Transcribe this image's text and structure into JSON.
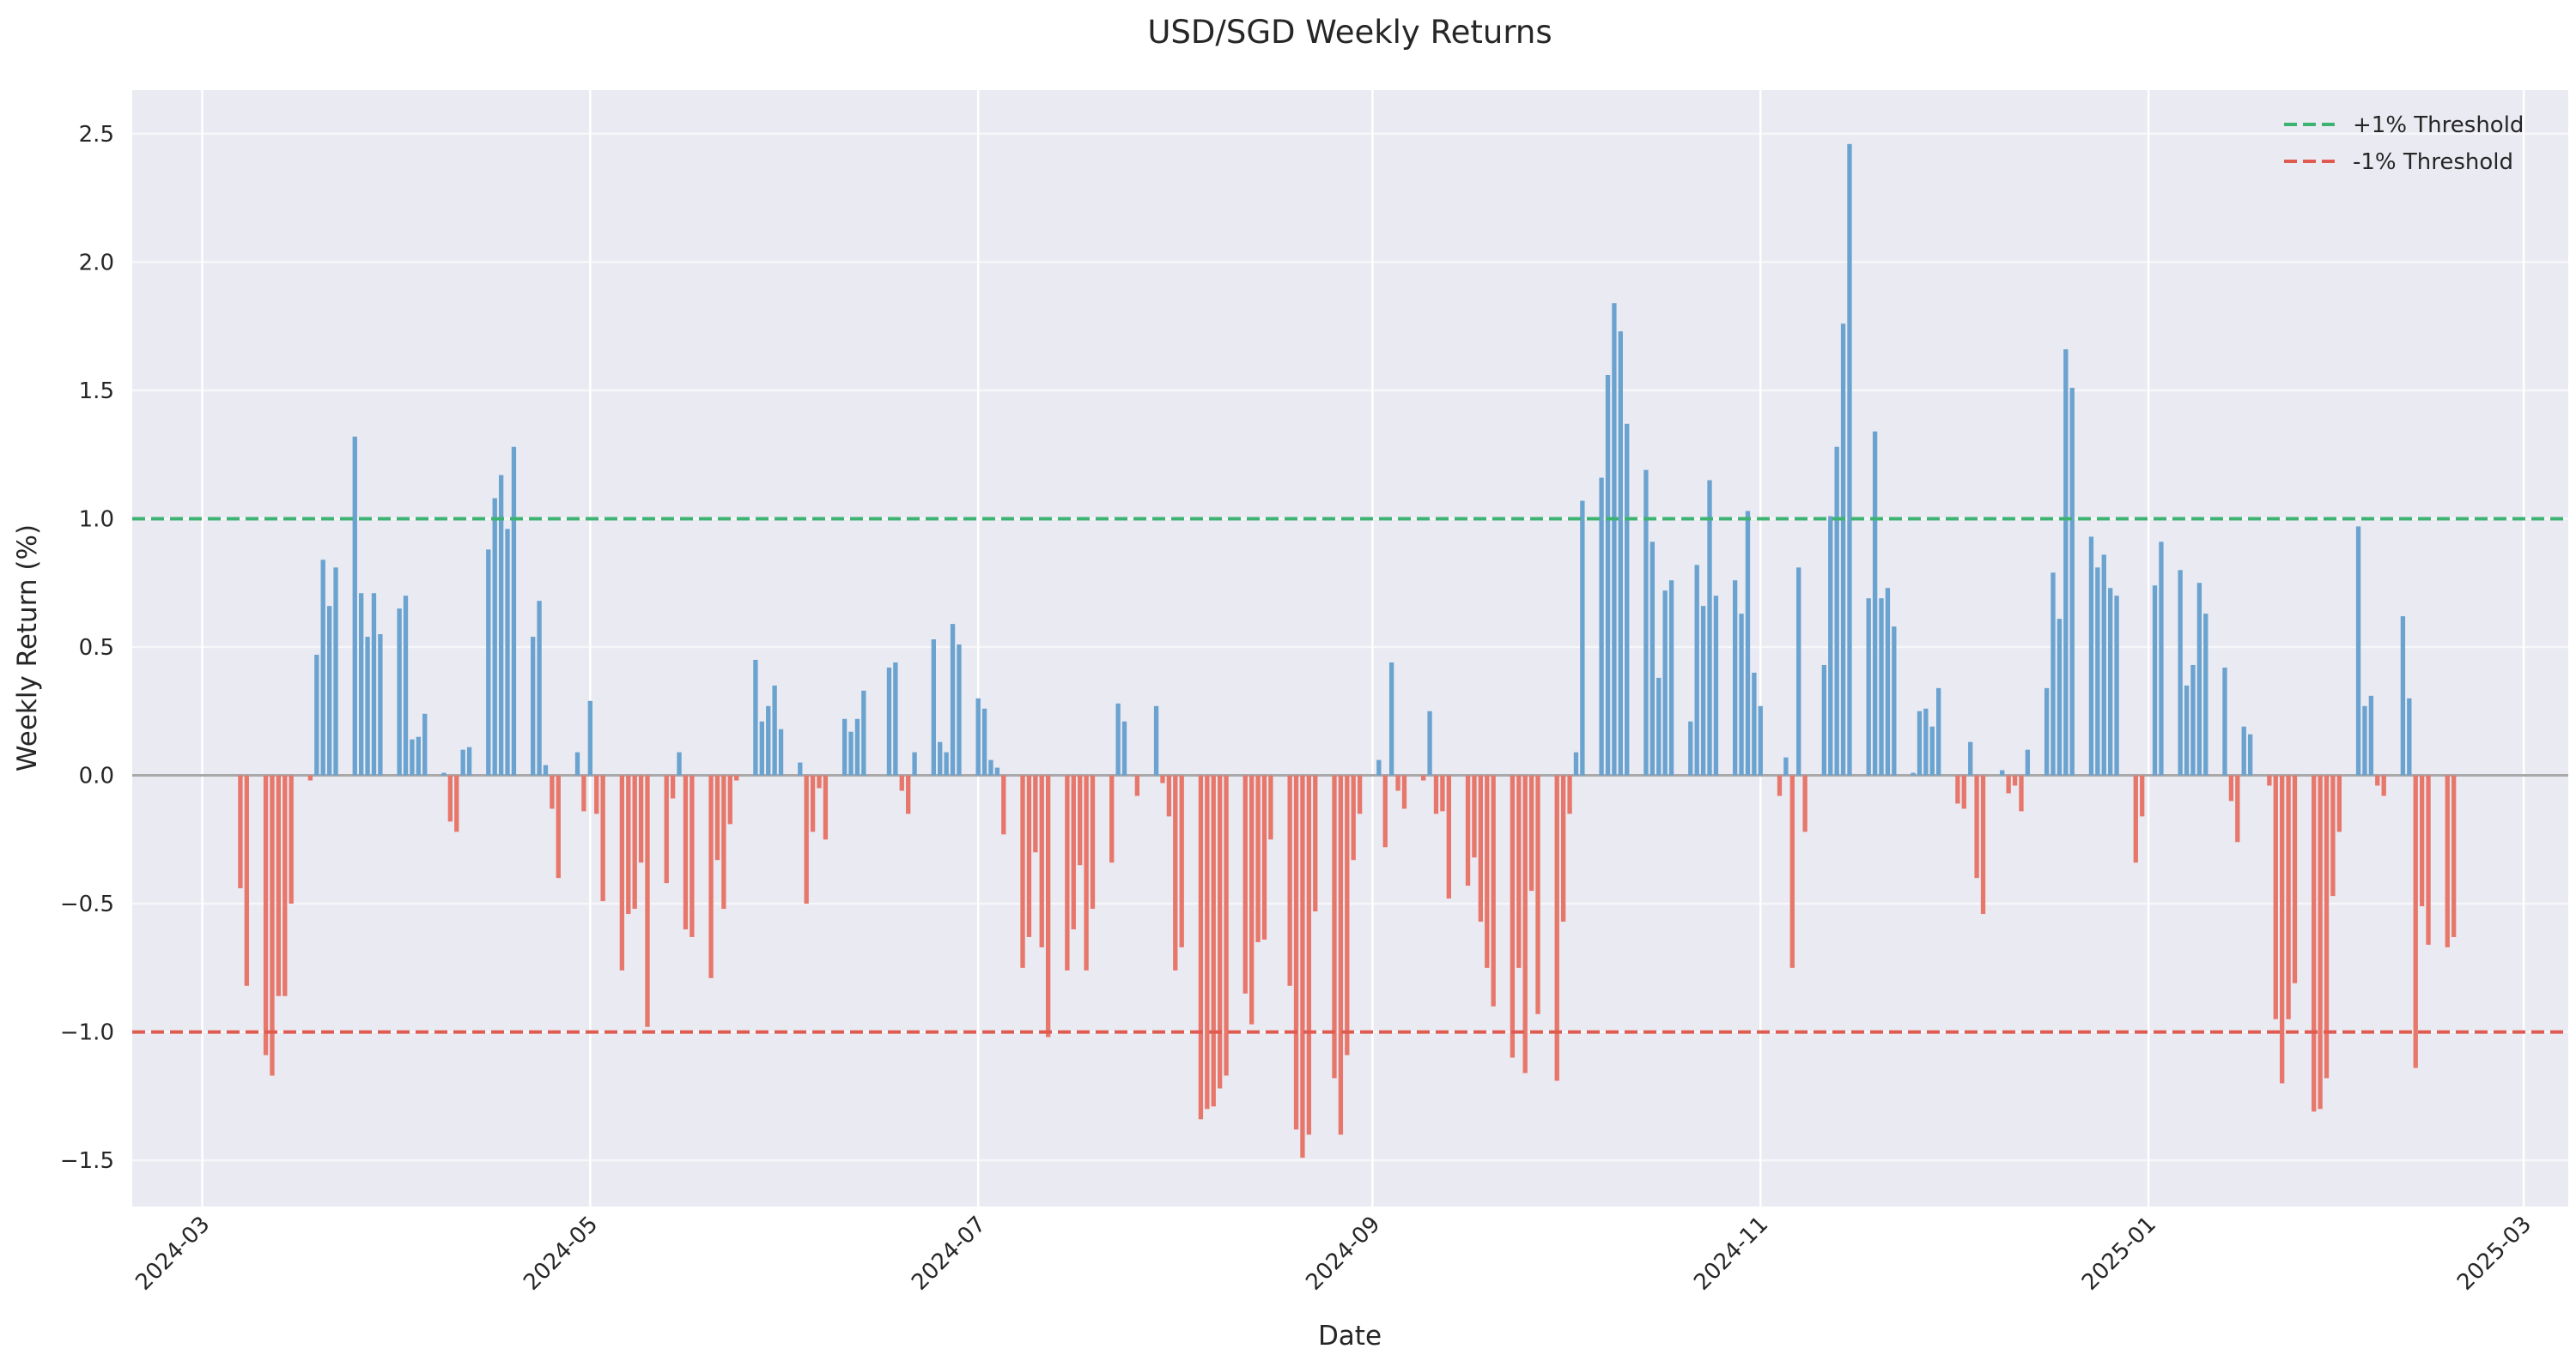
{
  "chart_data": {
    "type": "bar",
    "title": "USD/SGD Weekly Returns",
    "xlabel": "Date",
    "ylabel": "Weekly Return (%)",
    "x_axis": {
      "type": "date",
      "range": [
        "2024-02-19",
        "2025-03-08"
      ],
      "ticks": [
        "2024-03-01",
        "2024-05-01",
        "2024-07-01",
        "2024-09-01",
        "2024-11-01",
        "2025-01-01",
        "2025-03-01"
      ],
      "tick_labels": [
        "2024-03",
        "2024-05",
        "2024-07",
        "2024-09",
        "2024-11",
        "2025-01",
        "2025-03"
      ]
    },
    "y_axis": {
      "range": [
        -1.68,
        2.67
      ],
      "ticks": [
        -1.5,
        -1.0,
        -0.5,
        0.0,
        0.5,
        1.0,
        1.5,
        2.0,
        2.5
      ],
      "tick_labels": [
        "−1.5",
        "−1.0",
        "−0.5",
        "0.0",
        "0.5",
        "1.0",
        "1.5",
        "2.0",
        "2.5"
      ]
    },
    "grid": true,
    "legend": {
      "placement": "top-right"
    },
    "thresholds": [
      {
        "label": "+1% Threshold",
        "value": 1.0,
        "color": "#3cb371"
      },
      {
        "label": "-1% Threshold",
        "value": -1.0,
        "color": "#e05a4f"
      }
    ],
    "colors": {
      "positive": "#6aa3cf",
      "negative": "#e8776b",
      "background": "#eaeaf2",
      "zero_line": "#a9a9a9"
    },
    "series": [
      {
        "start_date": "2024-03-07",
        "end_date": "2025-02-19",
        "frequency": "daily (business days)",
        "values": [
          -0.44,
          -0.82,
          0.0,
          0.0,
          -1.09,
          -1.17,
          -0.86,
          -0.86,
          -0.5,
          0.0,
          0.0,
          -0.02,
          0.47,
          0.84,
          0.66,
          0.81,
          0.0,
          0.0,
          1.32,
          0.71,
          0.54,
          0.71,
          0.55,
          0.0,
          0.0,
          0.65,
          0.7,
          0.14,
          0.15,
          0.24,
          0.0,
          0.0,
          0.01,
          -0.18,
          -0.22,
          0.1,
          0.11,
          0.0,
          0.0,
          0.88,
          1.08,
          1.17,
          0.96,
          1.28,
          0.0,
          0.0,
          0.54,
          0.68,
          0.04,
          -0.13,
          -0.4,
          0.0,
          0.0,
          0.09,
          -0.14,
          0.29,
          -0.15,
          -0.49,
          0.0,
          0.0,
          -0.76,
          -0.54,
          -0.52,
          -0.34,
          -0.98,
          0.0,
          0.0,
          -0.42,
          -0.09,
          0.09,
          -0.6,
          -0.63,
          0.0,
          0.0,
          -0.79,
          -0.33,
          -0.52,
          -0.19,
          -0.02,
          0.0,
          0.0,
          0.45,
          0.21,
          0.27,
          0.35,
          0.18,
          0.0,
          0.0,
          0.05,
          -0.5,
          -0.22,
          -0.05,
          -0.25,
          0.0,
          0.0,
          0.22,
          0.17,
          0.22,
          0.33,
          0.0,
          0.0,
          0.0,
          0.42,
          0.44,
          -0.06,
          -0.15,
          0.09,
          0.0,
          0.0,
          0.53,
          0.13,
          0.09,
          0.59,
          0.51,
          0.0,
          0.0,
          0.3,
          0.26,
          0.06,
          0.03,
          -0.23,
          0.0,
          0.0,
          -0.75,
          -0.63,
          -0.3,
          -0.67,
          -1.02,
          0.0,
          0.0,
          -0.76,
          -0.6,
          -0.35,
          -0.76,
          -0.52,
          0.0,
          0.0,
          -0.34,
          0.28,
          0.21,
          0.0,
          -0.08,
          0.0,
          0.0,
          0.27,
          -0.03,
          -0.16,
          -0.76,
          -0.67,
          0.0,
          0.0,
          -1.34,
          -1.3,
          -1.29,
          -1.22,
          -1.17,
          0.0,
          0.0,
          -0.85,
          -0.97,
          -0.65,
          -0.64,
          -0.25,
          0.0,
          0.0,
          -0.82,
          -1.38,
          -1.49,
          -1.4,
          -0.53,
          0.0,
          0.0,
          -1.18,
          -1.4,
          -1.09,
          -0.33,
          -0.15,
          0.0,
          0.0,
          0.06,
          -0.28,
          0.44,
          -0.06,
          -0.13,
          0.0,
          0.0,
          -0.02,
          0.25,
          -0.15,
          -0.14,
          -0.48,
          0.0,
          0.0,
          -0.43,
          -0.32,
          -0.57,
          -0.75,
          -0.9,
          0.0,
          0.0,
          -1.1,
          -0.75,
          -1.16,
          -0.45,
          -0.93,
          0.0,
          0.0,
          -1.19,
          -0.57,
          -0.15,
          0.09,
          1.07,
          0.0,
          0.0,
          1.16,
          1.56,
          1.84,
          1.73,
          1.37,
          0.0,
          0.0,
          1.19,
          0.91,
          0.38,
          0.72,
          0.76,
          0.0,
          0.0,
          0.21,
          0.82,
          0.66,
          1.15,
          0.7,
          0.0,
          0.0,
          0.76,
          0.63,
          1.03,
          0.4,
          0.27,
          0.0,
          0.0,
          -0.08,
          0.07,
          -0.75,
          0.81,
          -0.22,
          0.0,
          0.0,
          0.43,
          1.01,
          1.28,
          1.76,
          2.46,
          0.0,
          0.0,
          0.69,
          1.34,
          0.69,
          0.73,
          0.58,
          0.0,
          0.0,
          0.01,
          0.25,
          0.26,
          0.19,
          0.34,
          0.0,
          0.0,
          -0.11,
          -0.13,
          0.13,
          -0.4,
          -0.54,
          0.0,
          0.0,
          0.02,
          -0.07,
          -0.04,
          -0.14,
          0.1,
          0.0,
          0.0,
          0.34,
          0.79,
          0.61,
          1.66,
          1.51,
          0.0,
          0.0,
          0.93,
          0.81,
          0.86,
          0.73,
          0.7,
          0.0,
          0.0,
          -0.34,
          -0.16,
          0.0,
          0.74,
          0.91,
          0.0,
          0.0,
          0.8,
          0.35,
          0.43,
          0.75,
          0.63,
          0.0,
          0.0,
          0.42,
          -0.1,
          -0.26,
          0.19,
          0.16,
          0.0,
          0.0,
          -0.04,
          -0.95,
          -1.2,
          -0.95,
          -0.81,
          0.0,
          0.0,
          -1.31,
          -1.3,
          -1.18,
          -0.47,
          -0.22,
          0.0,
          0.0,
          0.97,
          0.27,
          0.31,
          -0.04,
          -0.08,
          0.0,
          0.0,
          0.62,
          0.3,
          -1.14,
          -0.51,
          -0.66,
          0.0,
          0.0,
          -0.67,
          -0.63
        ]
      }
    ]
  }
}
